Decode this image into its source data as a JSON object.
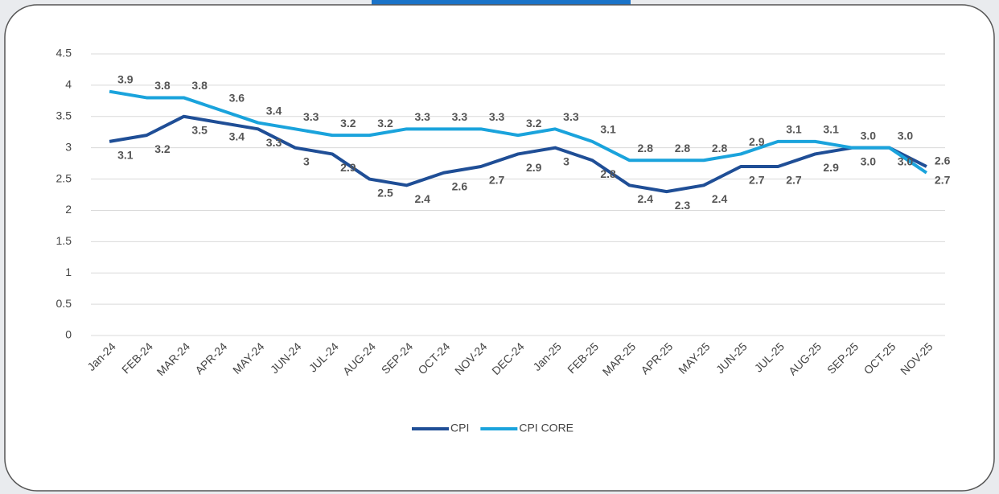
{
  "chart_data": {
    "type": "line",
    "categories": [
      "Jan-24",
      "FEB-24",
      "MAR-24",
      "APR-24",
      "MAY-24",
      "JUN-24",
      "JUL-24",
      "AUG-24",
      "SEP-24",
      "OCT-24",
      "NOV-24",
      "DEC-24",
      "Jan-25",
      "FEB-25",
      "MAR-25",
      "APR-25",
      "MAY-25",
      "JUN-25",
      "JUL-25",
      "AUG-25",
      "SEP-25",
      "OCT-25",
      "NOV-25"
    ],
    "series": [
      {
        "name": "CPI",
        "color": "#1f4e96",
        "values": [
          3.1,
          3.2,
          3.5,
          3.4,
          3.3,
          3,
          2.9,
          2.5,
          2.4,
          2.6,
          2.7,
          2.9,
          3,
          2.8,
          2.4,
          2.3,
          2.4,
          2.7,
          2.7,
          2.9,
          3.0,
          3.0,
          2.7
        ],
        "value_labels": [
          "3.1",
          "3.2",
          "3.5",
          "3.4",
          "3.3",
          "3",
          "2.9",
          "2.5",
          "2.4",
          "2.6",
          "2.7",
          "2.9",
          "3",
          "2.8",
          "2.4",
          "2.3",
          "2.4",
          "2.7",
          "2.7",
          "2.9",
          "3.0",
          "3.0",
          "2.7"
        ]
      },
      {
        "name": "CPI CORE",
        "color": "#1aa3dc",
        "values": [
          3.9,
          3.8,
          3.8,
          3.6,
          3.4,
          3.3,
          3.2,
          3.2,
          3.3,
          3.3,
          3.3,
          3.2,
          3.3,
          3.1,
          2.8,
          2.8,
          2.8,
          2.9,
          3.1,
          3.1,
          3.0,
          3.0,
          2.6
        ],
        "value_labels": [
          "3.9",
          "3.8",
          "3.8",
          "3.6",
          "3.4",
          "3.3",
          "3.2",
          "3.2",
          "3.3",
          "3.3",
          "3.3",
          "3.2",
          "3.3",
          "3.1",
          "2.8",
          "2.8",
          "2.8",
          "2.9",
          "3.1",
          "3.1",
          "3.0",
          "3.0",
          "2.6"
        ]
      }
    ],
    "ylim": [
      0,
      4.5
    ],
    "yticks": [
      0,
      0.5,
      1,
      1.5,
      2,
      2.5,
      3,
      3.5,
      4,
      4.5
    ],
    "grid": true,
    "legend": "bottom"
  }
}
